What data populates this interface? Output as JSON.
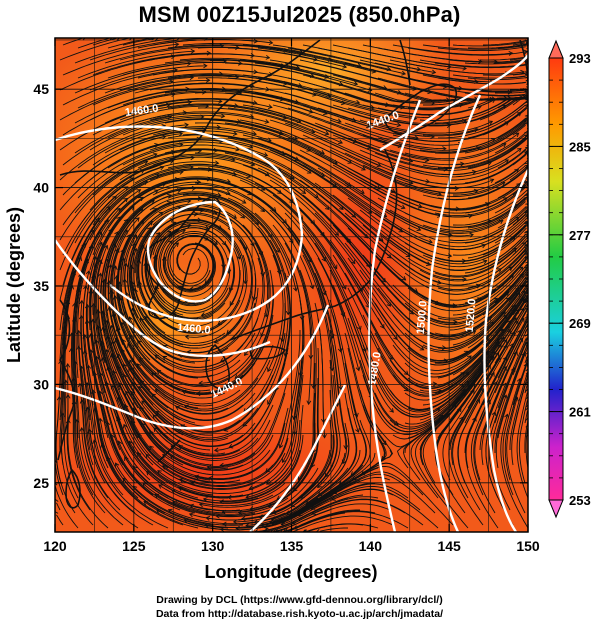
{
  "title": "MSM 00Z15Jul2025 (850.0hPa)",
  "credits": {
    "line1": "Drawing by DCL (https://www.gfd-dennou.org/library/dcl/)",
    "line2": "Data from http://database.rish.kyoto-u.ac.jp/arch/jmadata/"
  },
  "map": {
    "xlabel": "Longitude (degrees)",
    "ylabel": "Latitude  (degrees)",
    "lon_range": [
      120,
      150
    ],
    "lat_range": [
      22.5,
      47.6
    ],
    "lon_ticks": [
      120,
      125,
      130,
      135,
      140,
      145,
      150
    ],
    "lat_ticks": [
      25,
      30,
      35,
      40,
      45
    ],
    "lon_tick_labels": [
      "120",
      "125",
      "130",
      "135",
      "140",
      "145",
      "150"
    ],
    "lat_tick_labels": [
      "25",
      "30",
      "35",
      "40",
      "45"
    ],
    "grid": true,
    "contour_labels": [
      {
        "text": "1460.0",
        "lon": 125.5,
        "lat": 43.9,
        "angle": -8
      },
      {
        "text": "1440.0",
        "lon": 140.8,
        "lat": 43.4,
        "angle": -20
      },
      {
        "text": "1460.0",
        "lon": 128.8,
        "lat": 32.8,
        "angle": 5
      },
      {
        "text": "1440.0",
        "lon": 130.9,
        "lat": 29.8,
        "angle": -25
      },
      {
        "text": "1480.0",
        "lon": 140.3,
        "lat": 30.8,
        "angle": -80
      },
      {
        "text": "1500.0",
        "lon": 143.3,
        "lat": 33.4,
        "angle": -85
      },
      {
        "text": "1520.0",
        "lon": 146.4,
        "lat": 33.5,
        "angle": -85
      }
    ]
  },
  "colorbar": {
    "min": 253,
    "max": 293,
    "tick_labels": [
      "293",
      "285",
      "277",
      "269",
      "261",
      "253"
    ],
    "tick_values": [
      293,
      285,
      277,
      269,
      261,
      253
    ],
    "colors": [
      "#ff2a7a",
      "#cc22cc",
      "#2222cc",
      "#1ad0e0",
      "#22cc44",
      "#d8e020",
      "#ff9a00",
      "#ff3a10"
    ]
  }
}
